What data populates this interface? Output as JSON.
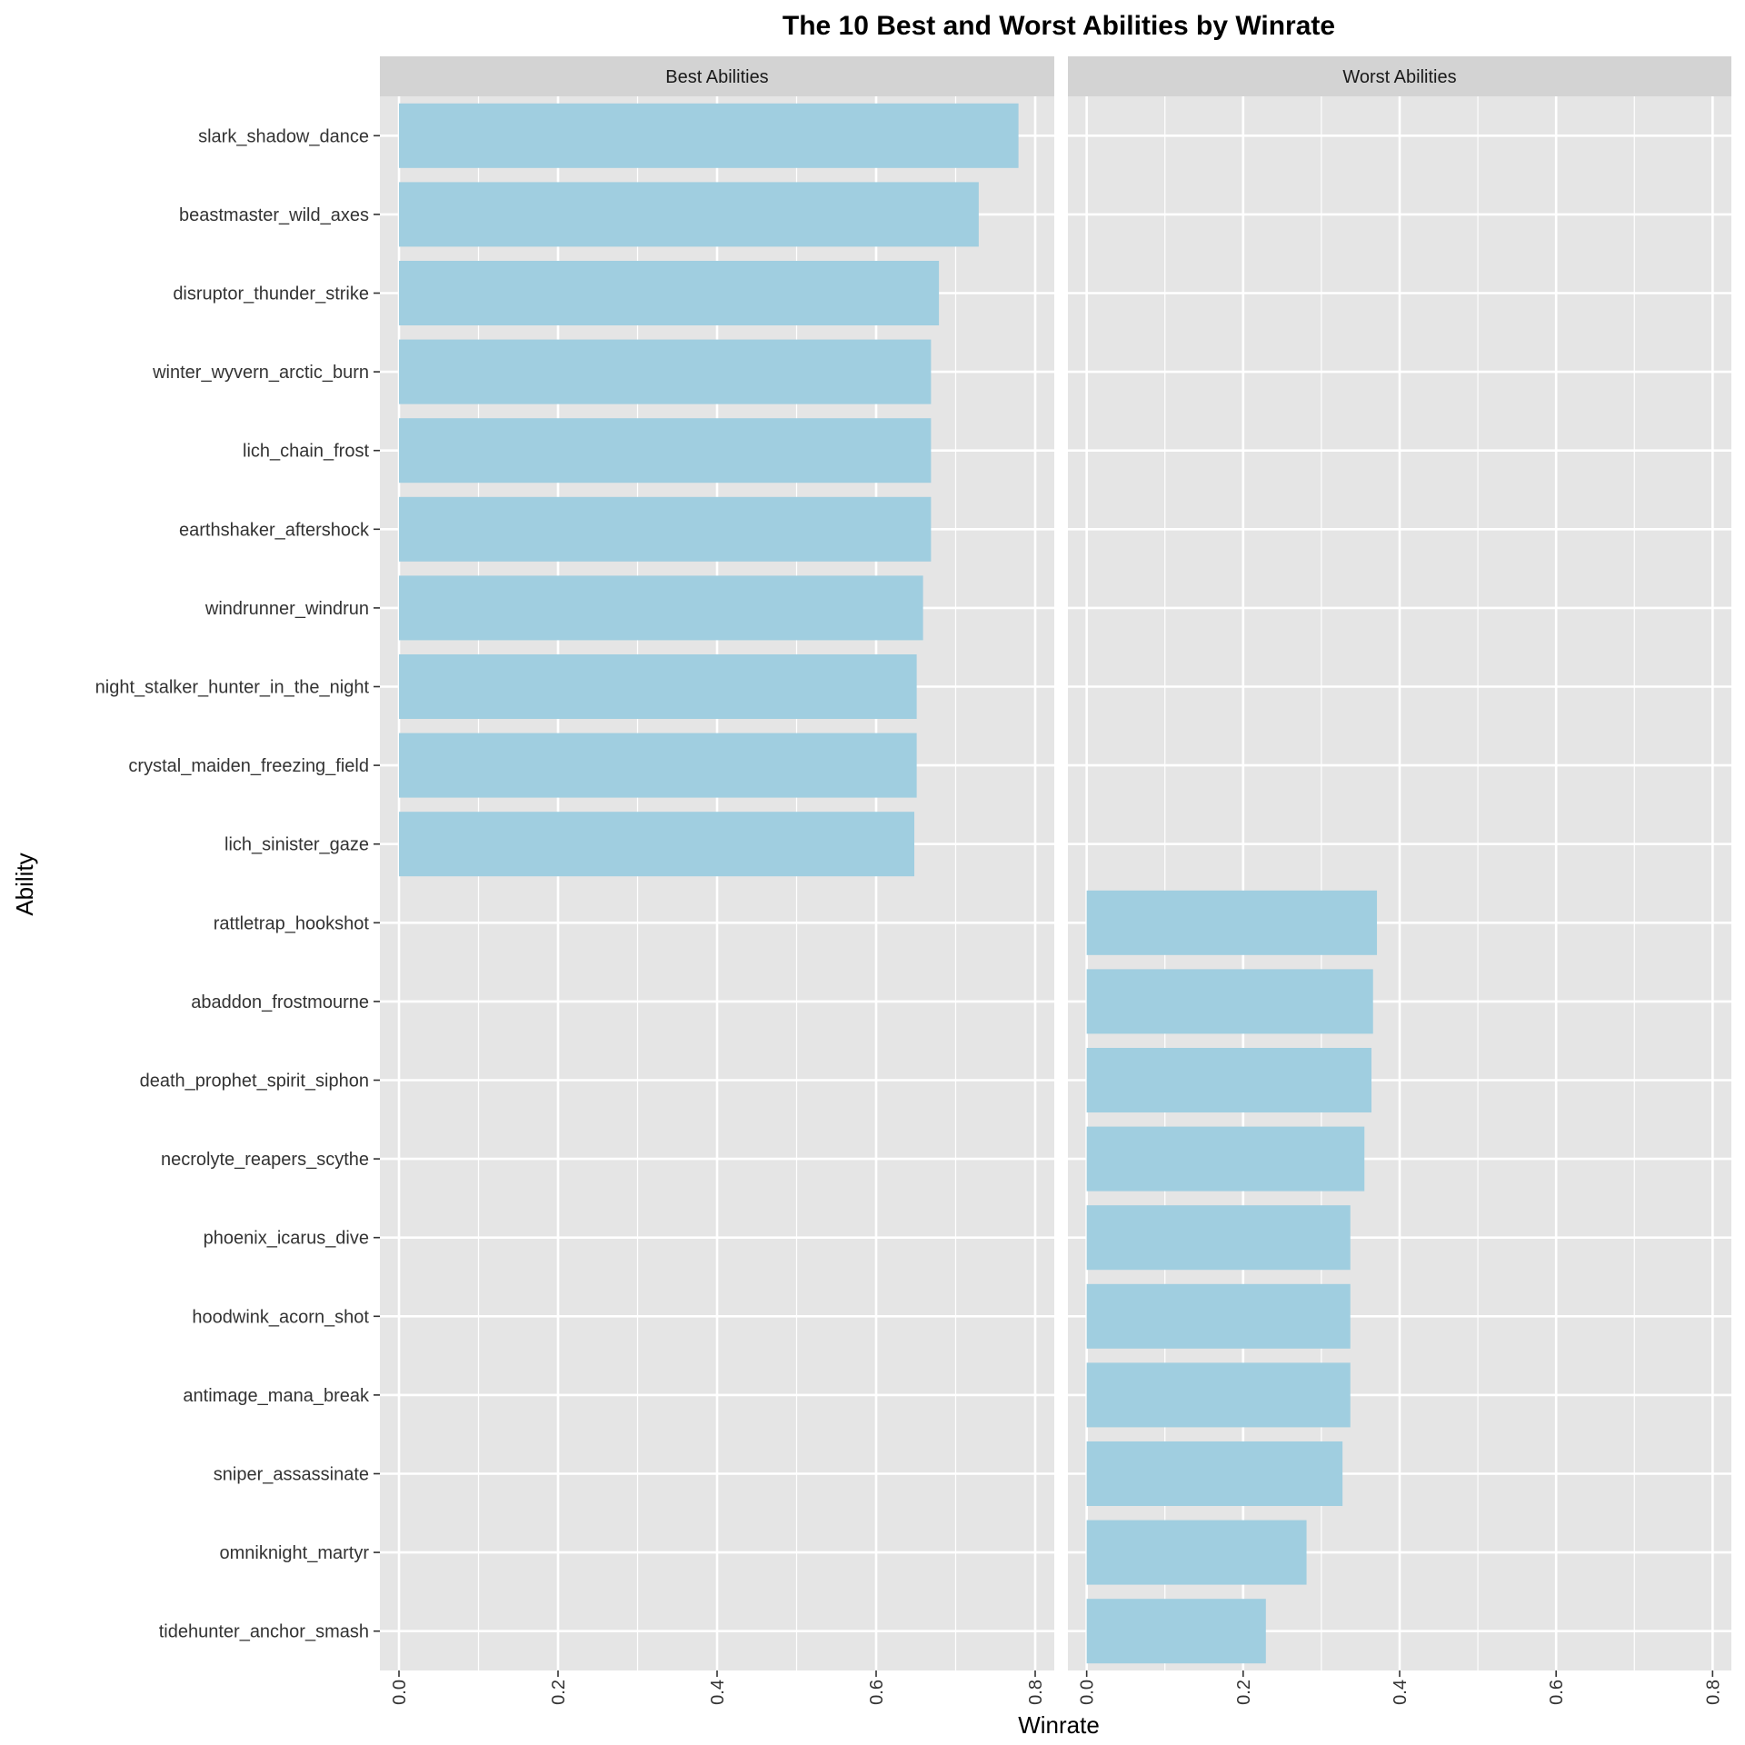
{
  "chart_data": {
    "type": "bar",
    "orientation": "horizontal",
    "title": "The 10 Best and Worst Abilities by Winrate",
    "xlabel": "Winrate",
    "ylabel": "Ability",
    "xlim": [
      0,
      0.8
    ],
    "x_ticks": [
      "0.0",
      "0.2",
      "0.4",
      "0.6",
      "0.8"
    ],
    "grid": true,
    "colors": {
      "bar": "#a0cee0",
      "panel": "#e5e5e5",
      "grid": "#ffffff",
      "strip": "#d3d3d3"
    },
    "categories": [
      "slark_shadow_dance",
      "beastmaster_wild_axes",
      "disruptor_thunder_strike",
      "winter_wyvern_arctic_burn",
      "lich_chain_frost",
      "earthshaker_aftershock",
      "windrunner_windrun",
      "night_stalker_hunter_in_the_night",
      "crystal_maiden_freezing_field",
      "lich_sinister_gaze",
      "rattletrap_hookshot",
      "abaddon_frostmourne",
      "death_prophet_spirit_siphon",
      "necrolyte_reapers_scythe",
      "phoenix_icarus_dive",
      "hoodwink_acorn_shot",
      "antimage_mana_break",
      "sniper_assassinate",
      "omniknight_martyr",
      "tidehunter_anchor_smash"
    ],
    "facets": [
      {
        "label": "Best Abilities",
        "values": [
          0.779,
          0.729,
          0.679,
          0.669,
          0.669,
          0.669,
          0.659,
          0.651,
          0.651,
          0.648,
          null,
          null,
          null,
          null,
          null,
          null,
          null,
          null,
          null,
          null
        ]
      },
      {
        "label": "Worst Abilities",
        "values": [
          null,
          null,
          null,
          null,
          null,
          null,
          null,
          null,
          null,
          null,
          0.371,
          0.366,
          0.364,
          0.355,
          0.337,
          0.337,
          0.337,
          0.327,
          0.281,
          0.229
        ]
      }
    ]
  }
}
